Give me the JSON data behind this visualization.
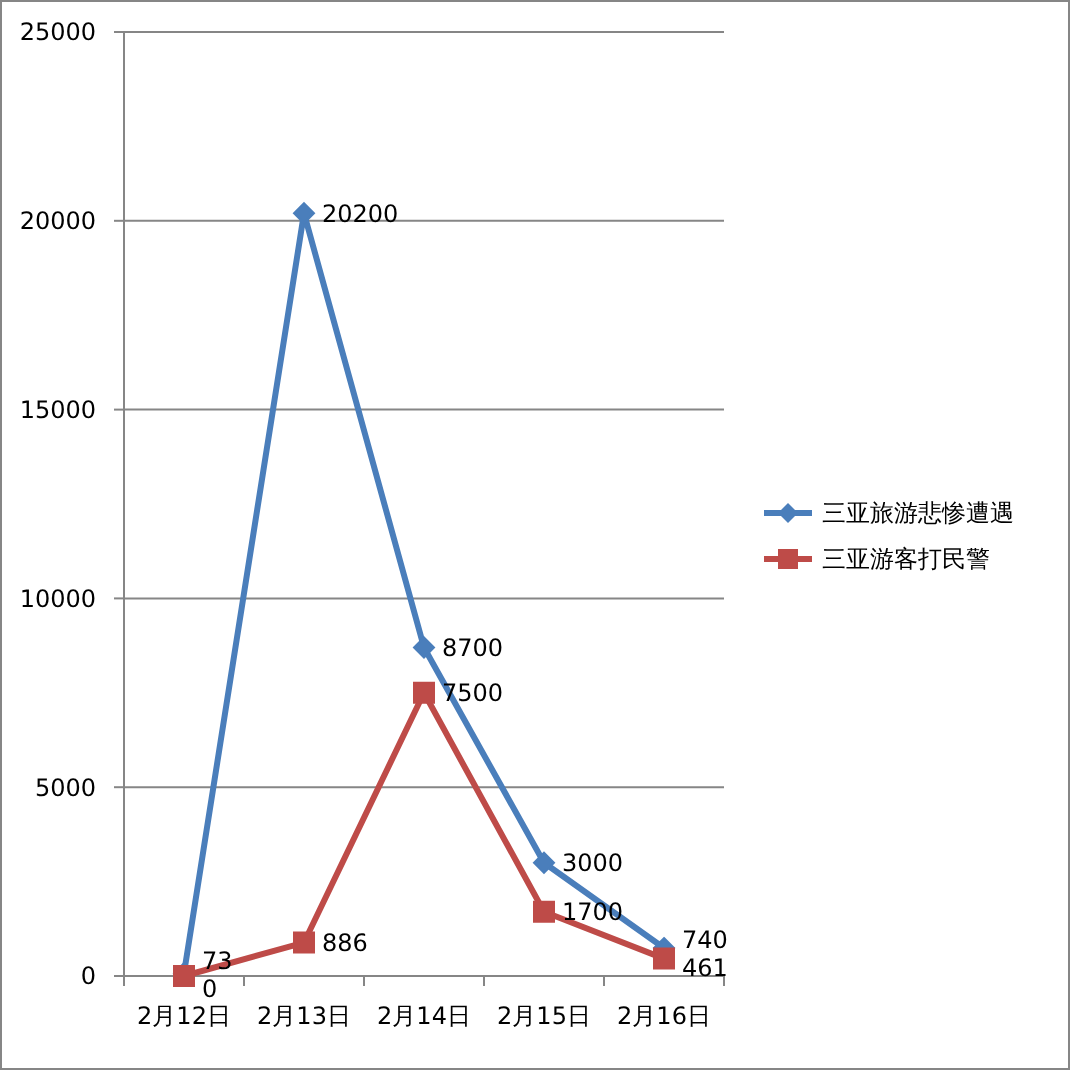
{
  "chart_data": {
    "type": "line",
    "categories": [
      "2月12日",
      "2月13日",
      "2月14日",
      "2月15日",
      "2月16日"
    ],
    "series": [
      {
        "name": "三亚旅游悲惨遭遇",
        "color": "#4a7ebb",
        "marker": "diamond",
        "values": [
          73,
          20200,
          8700,
          3000,
          740
        ]
      },
      {
        "name": "三亚游客打民警",
        "color": "#be4b48",
        "marker": "square",
        "values": [
          0,
          886,
          7500,
          1700,
          461
        ]
      }
    ],
    "ylim": [
      0,
      25000
    ],
    "yticks": [
      0,
      5000,
      10000,
      15000,
      20000,
      25000
    ],
    "grid": "y",
    "legend": "right",
    "data_labels": true,
    "line_style": "solid"
  }
}
